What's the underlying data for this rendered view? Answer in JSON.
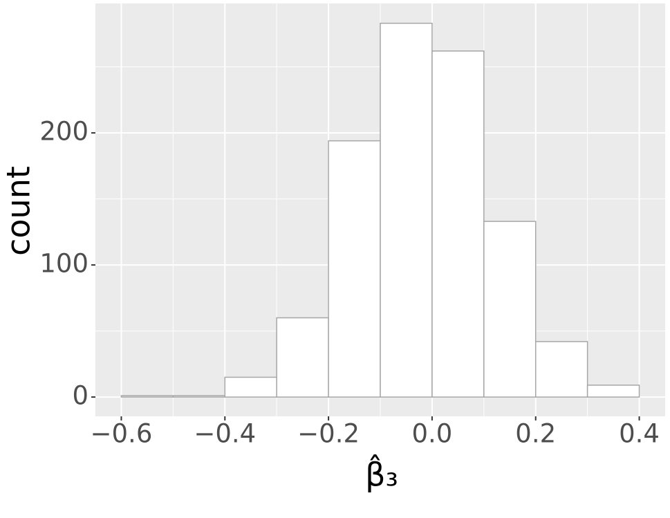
{
  "chart_data": {
    "type": "histogram",
    "xlabel": "β̂₃",
    "ylabel": "count",
    "bins": [
      -0.6,
      -0.5,
      -0.4,
      -0.3,
      -0.2,
      -0.1,
      0.0,
      0.1,
      0.2,
      0.3,
      0.4
    ],
    "values": [
      1,
      1,
      15,
      60,
      194,
      283,
      262,
      133,
      42,
      9
    ],
    "fill": "#ffffff",
    "edgecolor": "#a6a6a6",
    "xlim": [
      -0.65,
      0.45
    ],
    "ylim": [
      -14.6,
      298
    ],
    "xticks": [
      {
        "value": -0.6,
        "label": "−0.6"
      },
      {
        "value": -0.4,
        "label": "−0.4"
      },
      {
        "value": -0.2,
        "label": "−0.2"
      },
      {
        "value": 0.0,
        "label": "0.0"
      },
      0.2,
      0.4
    ],
    "yticks": [
      0,
      100,
      200
    ],
    "xminor": [
      -0.5,
      -0.3,
      -0.1,
      0.1,
      0.3
    ],
    "yminor": [
      50,
      150,
      250
    ],
    "grid": true
  }
}
